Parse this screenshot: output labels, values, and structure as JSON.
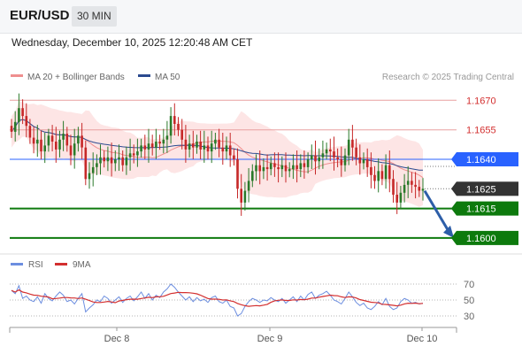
{
  "header": {
    "symbol": "EUR/USD",
    "timeframe": "30 MIN"
  },
  "datetime": "Wednesday, December 10, 2025 12:20:48 AM CET",
  "legend": {
    "bollinger": "MA 20 + Bollinger Bands",
    "ma50": "MA 50",
    "credit": "Research © 2025 Trading Central",
    "rsi": "RSI",
    "rsi_ma": "9MA"
  },
  "colors": {
    "bollinger": "#ef8f8f",
    "band_fill": "#fde0e0",
    "ma50": "#2b4a8f",
    "up_candle": "#2a7a2a",
    "down_candle": "#c62828",
    "support": "#0d7a0d",
    "resistance": "#e8a0a0",
    "pivot": "#2962ff",
    "current": "#333333",
    "arrow": "#2d5ea8",
    "rsi_line": "#6c8ee0",
    "rsi_ma_line": "#d32f2f"
  },
  "chart_data": [
    {
      "type": "candlestick",
      "ylim": [
        1.1595,
        1.1676
      ],
      "levels": [
        {
          "name": "resistance",
          "value": 1.167,
          "label": "1.1670"
        },
        {
          "name": "resistance",
          "value": 1.1655,
          "label": "1.1655"
        },
        {
          "name": "pivot",
          "value": 1.164,
          "label": "1.1640"
        },
        {
          "name": "current",
          "value": 1.1625,
          "label": "1.1625"
        },
        {
          "name": "support",
          "value": 1.1615,
          "label": "1.1615"
        },
        {
          "name": "support",
          "value": 1.16,
          "label": "1.1600"
        }
      ],
      "x_labels": [
        "Dec 8",
        "Dec 9",
        "Dec 10"
      ],
      "forecast_arrow": {
        "from": 1.1624,
        "to": 1.16
      },
      "close": [
        1.1654,
        1.1659,
        1.1666,
        1.1662,
        1.1657,
        1.1651,
        1.1648,
        1.165,
        1.1644,
        1.1647,
        1.1652,
        1.1649,
        1.1645,
        1.165,
        1.1653,
        1.1647,
        1.1642,
        1.1648,
        1.1652,
        1.1646,
        1.163,
        1.1633,
        1.1636,
        1.1638,
        1.1641,
        1.1639,
        1.1641,
        1.1638,
        1.164,
        1.1641,
        1.1637,
        1.1641,
        1.1643,
        1.1642,
        1.1644,
        1.1647,
        1.1645,
        1.1648,
        1.1646,
        1.1649,
        1.1648,
        1.165,
        1.1652,
        1.1662,
        1.1658,
        1.1655,
        1.165,
        1.1645,
        1.1648,
        1.1646,
        1.1649,
        1.1645,
        1.1647,
        1.1644,
        1.1648,
        1.165,
        1.1646,
        1.1644,
        1.1647,
        1.1642,
        1.164,
        1.1625,
        1.1618,
        1.1624,
        1.1629,
        1.1634,
        1.1637,
        1.1634,
        1.1636,
        1.1635,
        1.1638,
        1.1636,
        1.1635,
        1.1637,
        1.1634,
        1.1635,
        1.1637,
        1.1635,
        1.1638,
        1.1636,
        1.164,
        1.1642,
        1.1639,
        1.1641,
        1.1643,
        1.1645,
        1.1644,
        1.1641,
        1.164,
        1.1637,
        1.1642,
        1.165,
        1.1646,
        1.1641,
        1.1638,
        1.164,
        1.1636,
        1.1632,
        1.1629,
        1.1634,
        1.163,
        1.1637,
        1.163,
        1.1622,
        1.1618,
        1.1623,
        1.1627,
        1.1629,
        1.1627,
        1.1626,
        1.1624,
        1.1625
      ],
      "rsi": [
        62,
        58,
        68,
        52,
        55,
        50,
        48,
        54,
        46,
        58,
        52,
        49,
        55,
        60,
        56,
        48,
        50,
        45,
        52,
        58,
        35,
        40,
        44,
        50,
        48,
        55,
        52,
        46,
        50,
        54,
        47,
        52,
        55,
        49,
        54,
        60,
        52,
        58,
        50,
        56,
        53,
        60,
        64,
        70,
        66,
        60,
        55,
        50,
        54,
        48,
        53,
        49,
        51,
        47,
        53,
        55,
        48,
        46,
        50,
        42,
        40,
        30,
        33,
        42,
        48,
        52,
        50,
        47,
        50,
        49,
        53,
        50,
        48,
        52,
        46,
        50,
        54,
        48,
        55,
        50,
        57,
        60,
        52,
        56,
        58,
        61,
        56,
        50,
        48,
        45,
        52,
        60,
        54,
        47,
        43,
        46,
        40,
        38,
        42,
        48,
        44,
        52,
        42,
        38,
        40,
        48,
        52,
        50,
        46,
        47,
        45,
        46
      ],
      "rsi_levels": [
        70,
        50,
        30
      ]
    }
  ]
}
